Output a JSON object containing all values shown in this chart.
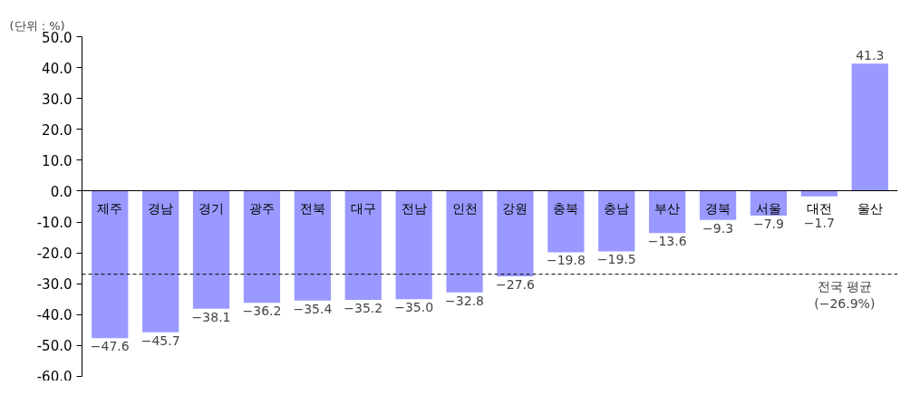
{
  "chart_data": {
    "type": "bar",
    "categories": [
      "제주",
      "경남",
      "경기",
      "광주",
      "전북",
      "대구",
      "전남",
      "인천",
      "강원",
      "충북",
      "충남",
      "부산",
      "경북",
      "서울",
      "대전",
      "울산"
    ],
    "values": [
      -47.6,
      -45.7,
      -38.1,
      -36.2,
      -35.4,
      -35.2,
      -35.0,
      -32.8,
      -27.6,
      -19.8,
      -19.5,
      -13.6,
      -9.3,
      -7.9,
      -1.7,
      41.3
    ],
    "value_labels": [
      "−47.6",
      "−45.7",
      "−38.1",
      "−36.2",
      "−35.4",
      "−35.2",
      "−35.0",
      "−32.8",
      "−27.6",
      "−19.8",
      "−19.5",
      "−13.6",
      "−9.3",
      "−7.9",
      "−1.7",
      "41.3"
    ],
    "color": "#9999ff",
    "ylim": [
      -60,
      50
    ],
    "yticks": [
      {
        "value": -60,
        "label": "-60.0"
      },
      {
        "value": -50,
        "label": "-50.0"
      },
      {
        "value": -40,
        "label": "-40.0"
      },
      {
        "value": -30,
        "label": "-30.0"
      },
      {
        "value": -20,
        "label": "-20.0"
      },
      {
        "value": -10,
        "label": "-10.0"
      },
      {
        "value": 0,
        "label": "0.0"
      },
      {
        "value": 10,
        "label": "10.0"
      },
      {
        "value": 20,
        "label": "20.0"
      },
      {
        "value": 30,
        "label": "30.0"
      },
      {
        "value": 40,
        "label": "40.0"
      },
      {
        "value": 50,
        "label": "50.0"
      }
    ],
    "ref_lines": [
      {
        "axis": "y",
        "value": -26.9,
        "label": "전국 평균\n(−26.9%)",
        "color": "#000000",
        "line_style": "dashed"
      }
    ],
    "annotations": [
      "(단위 : %)"
    ],
    "grid": false
  }
}
